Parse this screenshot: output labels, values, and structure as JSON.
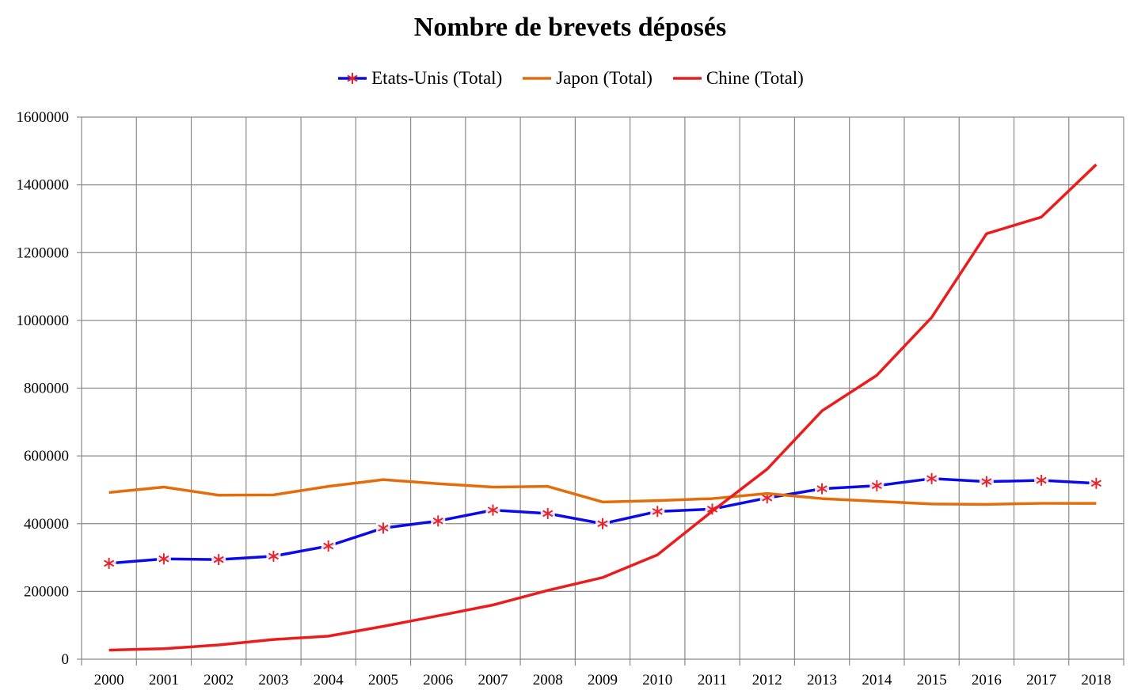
{
  "chart_data": {
    "type": "line",
    "title": "Nombre de brevets déposés",
    "xlabel": "",
    "ylabel": "",
    "ylim": [
      0,
      1600000
    ],
    "yticks": [
      0,
      200000,
      400000,
      600000,
      800000,
      1000000,
      1200000,
      1400000,
      1600000
    ],
    "grid": true,
    "legend_position": "top",
    "categories": [
      "2000",
      "2001",
      "2002",
      "2003",
      "2004",
      "2005",
      "2006",
      "2007",
      "2008",
      "2009",
      "2010",
      "2011",
      "2012",
      "2013",
      "2014",
      "2015",
      "2016",
      "2017",
      "2018"
    ],
    "series": [
      {
        "name": "Etats-Unis (Total)",
        "color": "#0a0aeb",
        "marker": "asterisk",
        "marker_color": "#e8242a",
        "values": [
          283000,
          296000,
          294000,
          304000,
          334000,
          387000,
          408000,
          440000,
          430000,
          400000,
          436000,
          443000,
          476000,
          503000,
          512000,
          533000,
          524000,
          528000,
          519000
        ]
      },
      {
        "name": "Japon (Total)",
        "color": "#e46c0a",
        "marker": "none",
        "values": [
          492000,
          508000,
          484000,
          485000,
          510000,
          530000,
          518000,
          508000,
          510000,
          464000,
          468000,
          474000,
          489000,
          474000,
          466000,
          458000,
          457000,
          460000,
          460000
        ]
      },
      {
        "name": "Chine (Total)",
        "color": "#ec1c1c",
        "marker": "none",
        "values": [
          27000,
          31000,
          42000,
          58000,
          68000,
          97000,
          128000,
          160000,
          203000,
          241000,
          308000,
          437000,
          561000,
          733000,
          838000,
          1009000,
          1256000,
          1305000,
          1460000
        ]
      }
    ]
  }
}
